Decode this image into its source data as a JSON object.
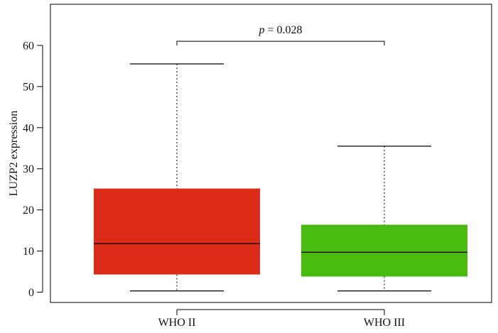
{
  "chart_data": {
    "type": "box",
    "title": "",
    "xlabel": "",
    "ylabel": "LUZP2 expression",
    "ylim": [
      -2.5,
      70
    ],
    "yticks": [
      0,
      10,
      20,
      30,
      40,
      50,
      60
    ],
    "categories": [
      "WHO II",
      "WHO III"
    ],
    "boxes": [
      {
        "name": "WHO II",
        "min": 0.3,
        "q1": 4.3,
        "median": 11.8,
        "q3": 25.2,
        "max": 55.5,
        "color": "#dd2b1a"
      },
      {
        "name": "WHO III",
        "min": 0.3,
        "q1": 3.8,
        "median": 9.7,
        "q3": 16.4,
        "max": 35.5,
        "color": "#49bb0f"
      }
    ],
    "annotation": {
      "p_symbol": "p",
      "text": " = 0.028",
      "y": 61
    }
  }
}
